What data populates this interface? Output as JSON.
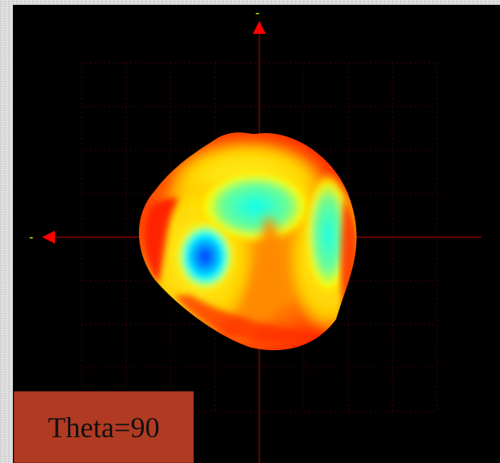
{
  "viewer": {
    "angle_label": "Theta=90",
    "axis_marker_top": "-",
    "axis_marker_left": "-",
    "colors": {
      "background": "#000000",
      "grid": "#5a0000",
      "axis": "#c00000",
      "arrow": "#ff0000",
      "marker": "#ffff00",
      "label_box": "#b03a22"
    },
    "colormap": [
      "#0033ff",
      "#00ffff",
      "#ffff00",
      "#ff9900",
      "#ff0000"
    ],
    "icons": {
      "up_arrow": "triangle-up-icon",
      "left_arrow": "triangle-left-icon"
    }
  }
}
